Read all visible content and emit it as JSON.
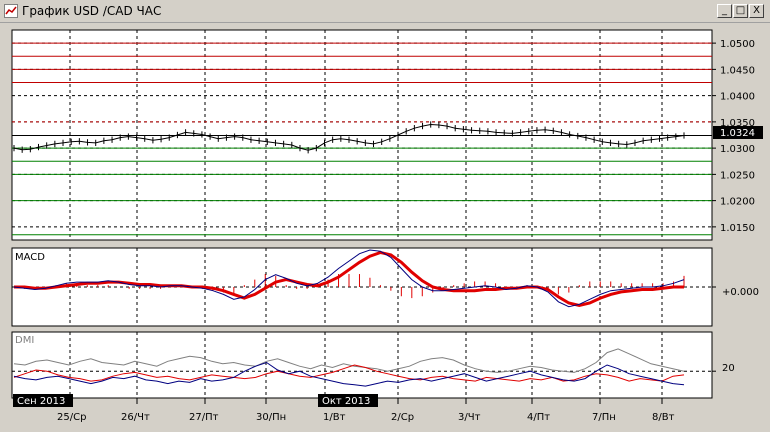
{
  "window": {
    "title": "График USD /CAD  ЧАС",
    "controls": {
      "minimize": "_",
      "maximize": "□",
      "close": "X"
    }
  },
  "chart_data": [
    {
      "panel": "price",
      "type": "line",
      "title": "",
      "current_price": "1.0324",
      "y_ticks": [
        "1.0500",
        "1.0450",
        "1.0400",
        "1.0350",
        "1.0300",
        "1.0250",
        "1.0200",
        "1.0150"
      ],
      "ylim": [
        1.0125,
        1.0525
      ],
      "grid": true,
      "resistance_lines": [
        1.05,
        1.0475,
        1.045,
        1.0425
      ],
      "support_lines": [
        1.03,
        1.0275,
        1.025,
        1.02,
        1.0135
      ],
      "dashed_level": 1.035,
      "series": [
        {
          "values": [
            1.03,
            1.0297,
            1.0298,
            1.0302,
            1.0305,
            1.0308,
            1.031,
            1.0312,
            1.0313,
            1.0311,
            1.031,
            1.0314,
            1.0316,
            1.032,
            1.0322,
            1.032,
            1.0318,
            1.0315,
            1.0317,
            1.032,
            1.0325,
            1.033,
            1.0328,
            1.0326,
            1.0322,
            1.0318,
            1.032,
            1.0322,
            1.032,
            1.0316,
            1.0314,
            1.0312,
            1.031,
            1.0308,
            1.0306,
            1.03,
            1.0296,
            1.03,
            1.031,
            1.0316,
            1.0318,
            1.0316,
            1.0313,
            1.031,
            1.0308,
            1.0312,
            1.0318,
            1.0325,
            1.0332,
            1.0338,
            1.0342,
            1.0345,
            1.0344,
            1.0342,
            1.0338,
            1.0336,
            1.0334,
            1.0333,
            1.0332,
            1.033,
            1.0329,
            1.0328,
            1.033,
            1.0332,
            1.0334,
            1.0335,
            1.0333,
            1.033,
            1.0326,
            1.0323,
            1.032,
            1.0316,
            1.0312,
            1.031,
            1.0308,
            1.0307,
            1.031,
            1.0314,
            1.0316,
            1.0318,
            1.032,
            1.0322,
            1.0324
          ]
        }
      ]
    },
    {
      "panel": "MACD",
      "type": "line",
      "label": "MACD",
      "y_ticks": [
        "+0.000"
      ],
      "ylim": [
        -0.003,
        0.003
      ],
      "series": [
        {
          "color": "#e00000",
          "values": [
            0.0,
            0.0,
            -0.0001,
            -0.0001,
            0.0,
            0.0001,
            0.0002,
            0.0003,
            0.0003,
            0.0004,
            0.0004,
            0.0003,
            0.0002,
            0.0002,
            0.0001,
            0.0001,
            0.0001,
            0.0,
            0.0,
            -0.0001,
            -0.0003,
            -0.0006,
            -0.0009,
            -0.0006,
            -0.0001,
            0.0004,
            0.0006,
            0.0004,
            0.0002,
            0.0001,
            0.0004,
            0.0008,
            0.0014,
            0.002,
            0.0025,
            0.0028,
            0.0026,
            0.002,
            0.0012,
            0.0005,
            0.0,
            -0.0002,
            -0.0003,
            -0.0003,
            -0.0003,
            -0.0002,
            -0.0002,
            -0.0001,
            -0.0001,
            0.0,
            0.0,
            -0.0002,
            -0.0008,
            -0.0013,
            -0.0015,
            -0.0013,
            -0.0009,
            -0.0006,
            -0.0004,
            -0.0003,
            -0.0002,
            -0.0002,
            -0.0001,
            0.0,
            0.0
          ]
        },
        {
          "color": "#000080",
          "values": [
            0.0,
            -0.0001,
            -0.0002,
            -0.0001,
            0.0001,
            0.0003,
            0.0004,
            0.0004,
            0.0004,
            0.0005,
            0.0004,
            0.0002,
            0.0001,
            0.0001,
            0.0,
            0.0001,
            0.0001,
            0.0,
            -0.0001,
            -0.0003,
            -0.0006,
            -0.001,
            -0.0008,
            -0.0002,
            0.0006,
            0.001,
            0.0007,
            0.0003,
            0.0001,
            0.0003,
            0.0008,
            0.0015,
            0.0021,
            0.0027,
            0.003,
            0.0029,
            0.0024,
            0.0015,
            0.0006,
            0.0,
            -0.0003,
            -0.0003,
            -0.0002,
            -0.0001,
            0.0,
            0.0001,
            0.0,
            -0.0002,
            -0.0001,
            0.0001,
            0.0,
            -0.0004,
            -0.0012,
            -0.0016,
            -0.0014,
            -0.001,
            -0.0006,
            -0.0003,
            -0.0002,
            -0.0001,
            0.0,
            0.0,
            0.0001,
            0.0003,
            0.0006
          ]
        }
      ]
    },
    {
      "panel": "DMI",
      "type": "line",
      "label": "DMI",
      "y_ticks": [
        "20"
      ],
      "ylim": [
        0,
        50
      ],
      "series": [
        {
          "color": "#808080",
          "values": [
            26,
            25,
            28,
            29,
            27,
            25,
            28,
            30,
            27,
            26,
            25,
            28,
            26,
            24,
            28,
            30,
            32,
            31,
            28,
            26,
            27,
            25,
            24,
            28,
            30,
            27,
            24,
            22,
            25,
            23,
            26,
            24,
            23,
            22,
            20,
            22,
            24,
            28,
            30,
            31,
            29,
            25,
            22,
            20,
            19,
            20,
            22,
            24,
            23,
            21,
            20,
            19,
            22,
            27,
            35,
            38,
            34,
            30,
            26,
            24,
            22,
            20
          ]
        },
        {
          "color": "#e00000",
          "values": [
            15,
            18,
            21,
            20,
            17,
            15,
            14,
            12,
            13,
            16,
            18,
            19,
            17,
            15,
            16,
            14,
            13,
            15,
            17,
            16,
            15,
            14,
            15,
            18,
            20,
            18,
            16,
            15,
            17,
            19,
            22,
            25,
            23,
            20,
            18,
            16,
            14,
            13,
            15,
            16,
            14,
            13,
            12,
            15,
            14,
            13,
            12,
            14,
            13,
            15,
            12,
            13,
            16,
            18,
            17,
            15,
            12,
            14,
            13,
            12,
            16,
            17
          ]
        },
        {
          "color": "#000080",
          "values": [
            16,
            14,
            13,
            15,
            16,
            14,
            12,
            10,
            12,
            15,
            14,
            16,
            13,
            12,
            10,
            12,
            11,
            14,
            12,
            13,
            15,
            20,
            24,
            27,
            21,
            18,
            20,
            16,
            14,
            12,
            10,
            9,
            8,
            10,
            12,
            11,
            13,
            14,
            12,
            14,
            16,
            18,
            15,
            12,
            14,
            16,
            18,
            20,
            17,
            15,
            13,
            12,
            14,
            20,
            25,
            22,
            18,
            16,
            14,
            12,
            10,
            9
          ]
        }
      ]
    }
  ],
  "x_axis": {
    "labels": [
      "25/Ср",
      "26/Чт",
      "27/Пт",
      "30/Пн",
      "1/Вт",
      "2/Ср",
      "3/Чт",
      "4/Пт",
      "7/Пн",
      "8/Вт"
    ],
    "month_markers": [
      "Сен 2013",
      "Окт 2013"
    ]
  }
}
